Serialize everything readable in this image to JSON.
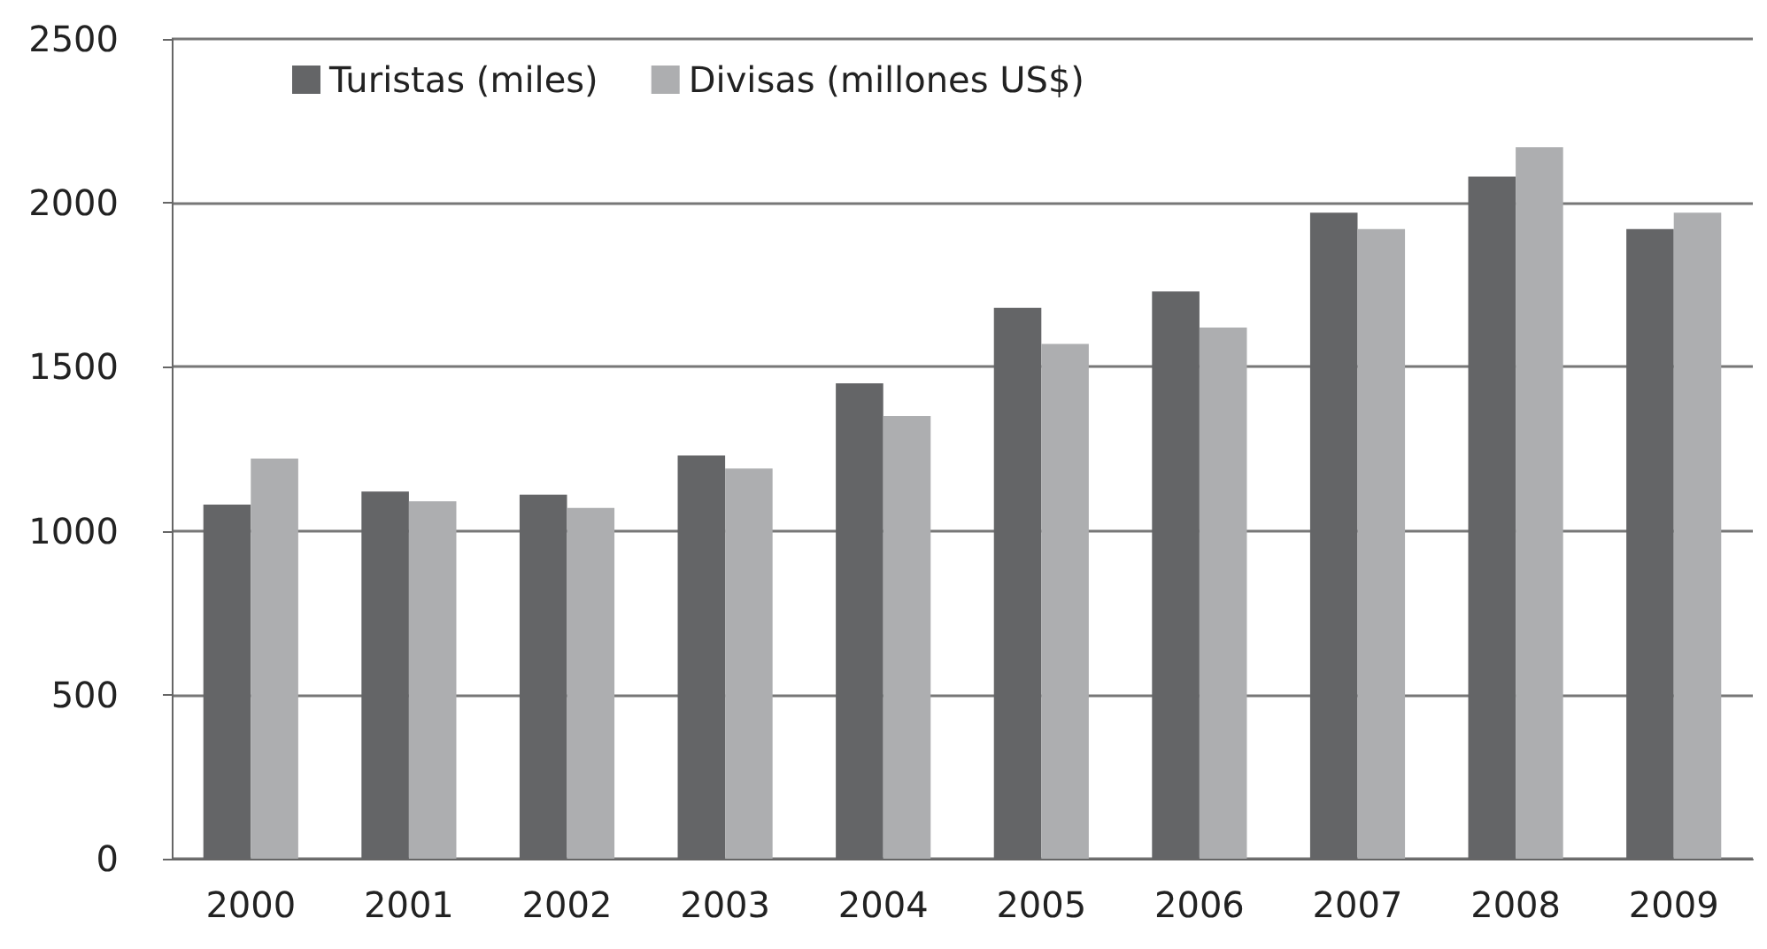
{
  "chart_data": {
    "type": "bar",
    "categories": [
      "2000",
      "2001",
      "2002",
      "2003",
      "2004",
      "2005",
      "2006",
      "2007",
      "2008",
      "2009"
    ],
    "series": [
      {
        "name": "Turistas (miles)",
        "color": "#646567",
        "values": [
          1080,
          1120,
          1110,
          1230,
          1450,
          1680,
          1730,
          1970,
          2080,
          1920
        ]
      },
      {
        "name": "Divisas (millones US$)",
        "color": "#adaeb0",
        "values": [
          1220,
          1090,
          1070,
          1190,
          1350,
          1570,
          1620,
          1920,
          2170,
          1970
        ]
      }
    ],
    "ylim": [
      0,
      2500
    ],
    "yticks": [
      0,
      500,
      1000,
      1500,
      2000,
      2500
    ],
    "grid": "y",
    "legend": "top left"
  }
}
